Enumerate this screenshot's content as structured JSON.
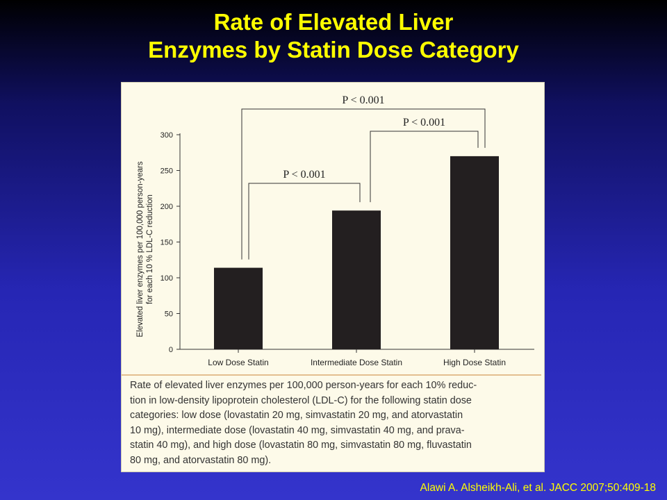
{
  "slide": {
    "title_line1": "Rate of Elevated Liver",
    "title_line2": "Enzymes by Statin Dose Category",
    "citation": "Alawi A. Alsheikh-Ali, et al. JACC 2007;50:409-18"
  },
  "colors": {
    "title": "#ffff00",
    "bar": "#231f20",
    "panel_bg": "#fdfae9",
    "caption_rule": "#e3bf90"
  },
  "chart_data": {
    "type": "bar",
    "categories": [
      "Low Dose Statin",
      "Intermediate Dose Statin",
      "High Dose Statin"
    ],
    "values": [
      114,
      194,
      270
    ],
    "ylabel_line1": "Elevated liver enzymes per 100,000 person-years",
    "ylabel_line2": "for each 10 % LDL-C reduction",
    "ylim": [
      0,
      300
    ],
    "yticks": [
      0,
      50,
      100,
      150,
      200,
      250,
      300
    ],
    "grid": false,
    "annotations": [
      {
        "label": "P < 0.001",
        "from": 0,
        "to": 1
      },
      {
        "label": "P < 0.001",
        "from": 1,
        "to": 2
      },
      {
        "label": "P < 0.001",
        "from": 0,
        "to": 2
      }
    ]
  },
  "caption_lines": [
    "Rate of elevated liver enzymes per 100,000 person-years for each 10% reduc-",
    "tion in low-density lipoprotein cholesterol (LDL-C) for the following statin dose",
    "categories: low dose (lovastatin 20 mg, simvastatin 20 mg, and atorvastatin",
    "10 mg), intermediate dose (lovastatin 40 mg, simvastatin 40 mg, and prava-",
    "statin 40 mg), and high dose (lovastatin 80 mg, simvastatin 80 mg, fluvastatin",
    "80 mg, and atorvastatin 80 mg)."
  ]
}
